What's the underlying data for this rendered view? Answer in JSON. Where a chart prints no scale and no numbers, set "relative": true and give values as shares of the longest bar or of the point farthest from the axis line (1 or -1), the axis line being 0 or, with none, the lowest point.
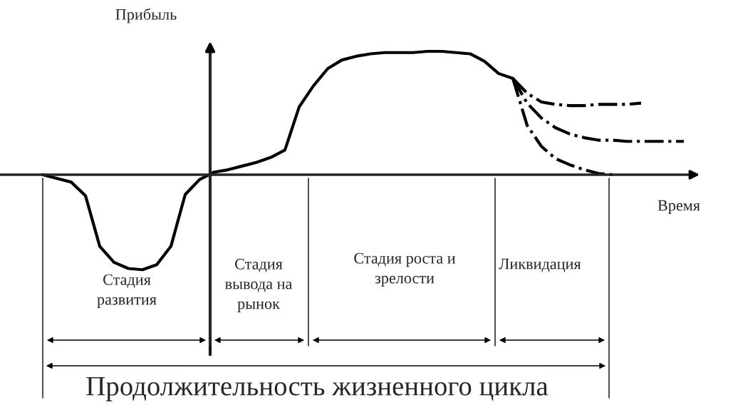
{
  "chart_data": {
    "type": "line",
    "relative": true,
    "xlabel": "Время",
    "ylabel": "Прибыль",
    "categories": [
      null,
      null,
      null,
      null,
      null,
      null,
      null,
      null,
      null,
      null,
      null,
      null,
      null,
      null,
      null,
      null,
      null,
      null,
      null,
      null,
      null,
      null,
      null,
      null,
      null,
      null,
      null,
      null,
      null,
      null,
      null,
      null,
      null,
      null,
      null,
      null,
      null,
      null,
      null,
      null,
      null,
      null,
      null,
      null,
      null,
      null
    ],
    "series": [
      {
        "color": "#000000",
        "line_style": "solid",
        "values": [
          0,
          -0.03,
          -0.06,
          -0.17,
          -0.58,
          -0.71,
          -0.76,
          -0.77,
          -0.73,
          -0.58,
          -0.16,
          -0.04,
          0.02,
          0.04,
          0.07,
          0.1,
          0.14,
          0.2,
          0.55,
          0.72,
          0.86,
          0.93,
          0.96,
          0.98,
          0.99,
          0.99,
          0.99,
          1.0,
          1.0,
          0.99,
          0.98,
          0.92,
          0.82,
          0.78,
          null,
          null,
          null,
          null,
          null,
          null,
          null,
          null,
          null,
          null,
          null,
          null
        ]
      },
      {
        "color": "#000000",
        "line_style": "dashed",
        "values": [
          null,
          null,
          null,
          null,
          null,
          null,
          null,
          null,
          null,
          null,
          null,
          null,
          null,
          null,
          null,
          null,
          null,
          null,
          null,
          null,
          null,
          null,
          null,
          null,
          null,
          null,
          null,
          null,
          null,
          null,
          null,
          null,
          null,
          0.78,
          0.66,
          0.59,
          0.57,
          0.56,
          0.56,
          0.57,
          0.57,
          0.57,
          0.58,
          null,
          null,
          null
        ]
      },
      {
        "color": "#000000",
        "line_style": "dashed",
        "values": [
          null,
          null,
          null,
          null,
          null,
          null,
          null,
          null,
          null,
          null,
          null,
          null,
          null,
          null,
          null,
          null,
          null,
          null,
          null,
          null,
          null,
          null,
          null,
          null,
          null,
          null,
          null,
          null,
          null,
          null,
          null,
          null,
          null,
          0.78,
          0.58,
          0.46,
          0.38,
          0.33,
          0.3,
          0.28,
          0.28,
          0.27,
          0.27,
          0.27,
          0.27,
          0.27
        ]
      },
      {
        "color": "#000000",
        "line_style": "dashed",
        "values": [
          null,
          null,
          null,
          null,
          null,
          null,
          null,
          null,
          null,
          null,
          null,
          null,
          null,
          null,
          null,
          null,
          null,
          null,
          null,
          null,
          null,
          null,
          null,
          null,
          null,
          null,
          null,
          null,
          null,
          null,
          null,
          null,
          null,
          0.78,
          0.4,
          0.23,
          0.13,
          0.08,
          0.04,
          0.01,
          0.0,
          null,
          null,
          null,
          null,
          null
        ]
      }
    ],
    "annotations": [
      "Стадия\nразвития",
      "Стадия\nвывода на\nрынок",
      "Стадия роста и\nзрелости",
      "Ликвидация",
      "Продолжительность жизненного цикла"
    ]
  }
}
